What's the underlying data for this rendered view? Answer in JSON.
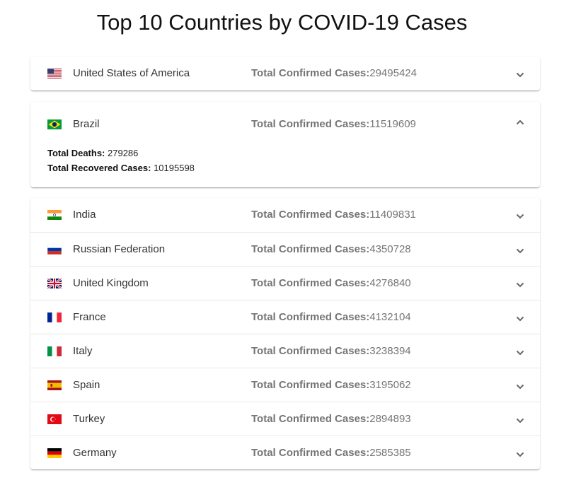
{
  "page": {
    "title": "Top 10 Countries by COVID-19 Cases"
  },
  "labels": {
    "total_confirmed": "Total Confirmed Cases:",
    "total_deaths": "Total Deaths:",
    "total_recovered": "Total Recovered Cases:"
  },
  "countries": [
    {
      "name": "United States of America",
      "flag": "us-flag-icon",
      "confirmed": "29495424"
    },
    {
      "name": "Brazil",
      "flag": "brazil-flag-icon",
      "confirmed": "11519609",
      "expanded": true,
      "deaths": "279286",
      "recovered": "10195598"
    },
    {
      "name": "India",
      "flag": "india-flag-icon",
      "confirmed": "11409831"
    },
    {
      "name": "Russian Federation",
      "flag": "russia-flag-icon",
      "confirmed": "4350728"
    },
    {
      "name": "United Kingdom",
      "flag": "uk-flag-icon",
      "confirmed": "4276840"
    },
    {
      "name": "France",
      "flag": "france-flag-icon",
      "confirmed": "4132104"
    },
    {
      "name": "Italy",
      "flag": "italy-flag-icon",
      "confirmed": "3238394"
    },
    {
      "name": "Spain",
      "flag": "spain-flag-icon",
      "confirmed": "3195062"
    },
    {
      "name": "Turkey",
      "flag": "turkey-flag-icon",
      "confirmed": "2894893"
    },
    {
      "name": "Germany",
      "flag": "germany-flag-icon",
      "confirmed": "2585385"
    }
  ]
}
